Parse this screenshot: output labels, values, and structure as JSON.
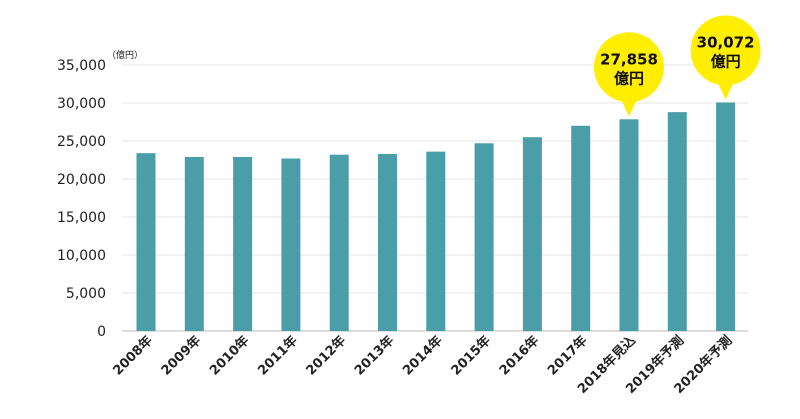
{
  "chart_data": {
    "type": "bar",
    "unit": "（億円）",
    "categories": [
      "2008年",
      "2009年",
      "2010年",
      "2011年",
      "2012年",
      "2013年",
      "2014年",
      "2015年",
      "2016年",
      "2017年",
      "2018年見込",
      "2019年予測",
      "2020年予測"
    ],
    "values": [
      23400,
      22900,
      22900,
      22700,
      23200,
      23300,
      23600,
      24700,
      25500,
      27000,
      27858,
      28800,
      30072
    ],
    "ylim": [
      0,
      35000
    ],
    "yticks": [
      "0",
      "5,000",
      "10,000",
      "15,000",
      "20,000",
      "25,000",
      "30,000",
      "35,000"
    ],
    "grid": true,
    "colors": {
      "bar": "#4a9ea8",
      "callout": "#ffee00",
      "grid": "#e6e6e6"
    },
    "annotations": [
      {
        "category_index": 10,
        "value_text": "27,858",
        "unit_text": "億円"
      },
      {
        "category_index": 12,
        "value_text": "30,072",
        "unit_text": "億円"
      }
    ]
  }
}
